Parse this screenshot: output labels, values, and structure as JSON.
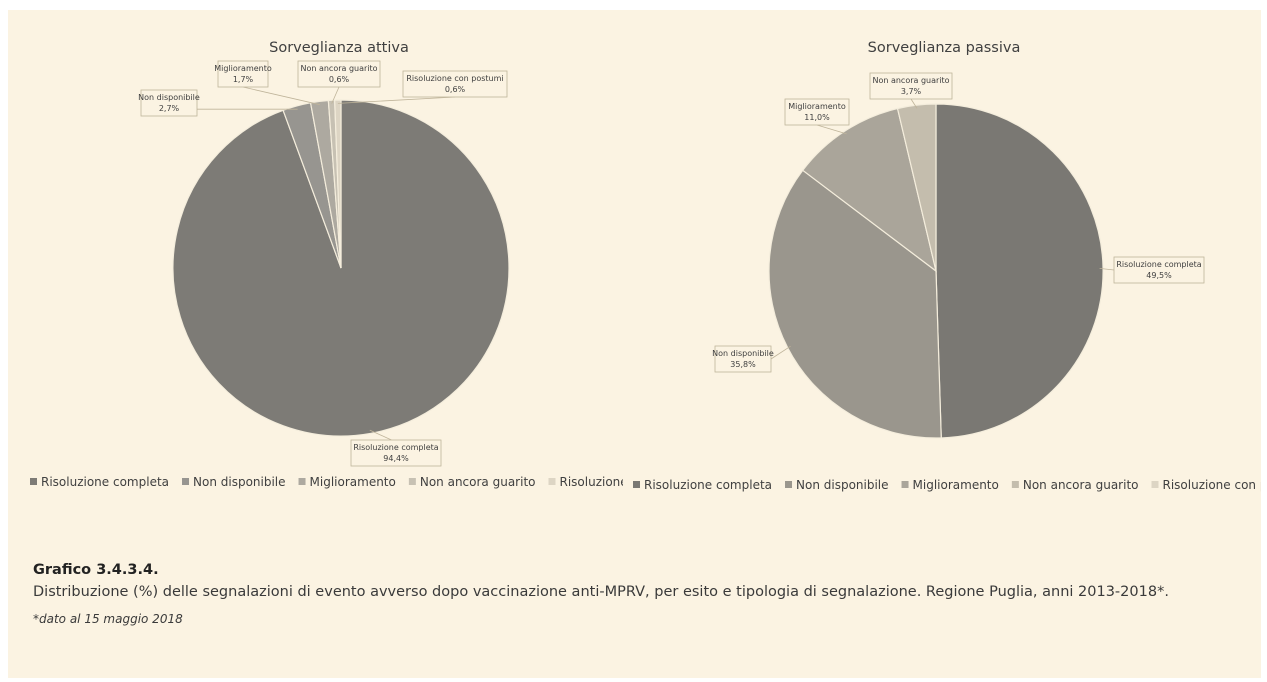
{
  "chart_data": [
    {
      "type": "pie",
      "title": "Sorveglianza attiva",
      "slices": [
        {
          "label": "Risoluzione completa",
          "value": 94.4,
          "display": "94,4%",
          "color": "#7d7b76"
        },
        {
          "label": "Non disponibile",
          "value": 2.7,
          "display": "2,7%",
          "color": "#979590"
        },
        {
          "label": "Miglioramento",
          "value": 1.7,
          "display": "1,7%",
          "color": "#ada9a0"
        },
        {
          "label": "Non ancora guarito",
          "value": 0.6,
          "display": "0,6%",
          "color": "#c7c1b3"
        },
        {
          "label": "Risoluzione con postumi",
          "value": 0.6,
          "display": "0,6%",
          "color": "#ddd5c4"
        }
      ],
      "legend": [
        "Risoluzione completa",
        "Non disponibile",
        "Miglioramento",
        "Non ancora guarito",
        "Risoluzione con"
      ]
    },
    {
      "type": "pie",
      "title": "Sorveglianza passiva",
      "slices": [
        {
          "label": "Risoluzione completa",
          "value": 49.5,
          "display": "49,5%",
          "color": "#7a7873"
        },
        {
          "label": "Non disponibile",
          "value": 35.8,
          "display": "35,8%",
          "color": "#9a968d"
        },
        {
          "label": "Miglioramento",
          "value": 11.0,
          "display": "11,0%",
          "color": "#aaa59a"
        },
        {
          "label": "Non ancora guarito",
          "value": 3.7,
          "display": "3,7%",
          "color": "#c4bdad"
        },
        {
          "label": "Risoluzione con postumi",
          "value": 0.0,
          "display": "",
          "color": "#ddd5c4"
        }
      ],
      "legend": [
        "Risoluzione completa",
        "Non disponibile",
        "Miglioramento",
        "Non ancora guarito",
        "Risoluzione con postumi"
      ]
    }
  ],
  "caption": {
    "title": "Grafico 3.4.3.4.",
    "text": "Distribuzione (%) delle segnalazioni di evento avverso dopo vaccinazione anti-MPRV, per esito e tipologia di segnalazione. Regione Puglia, anni 2013-2018*.",
    "note": "*dato al 15 maggio 2018"
  }
}
